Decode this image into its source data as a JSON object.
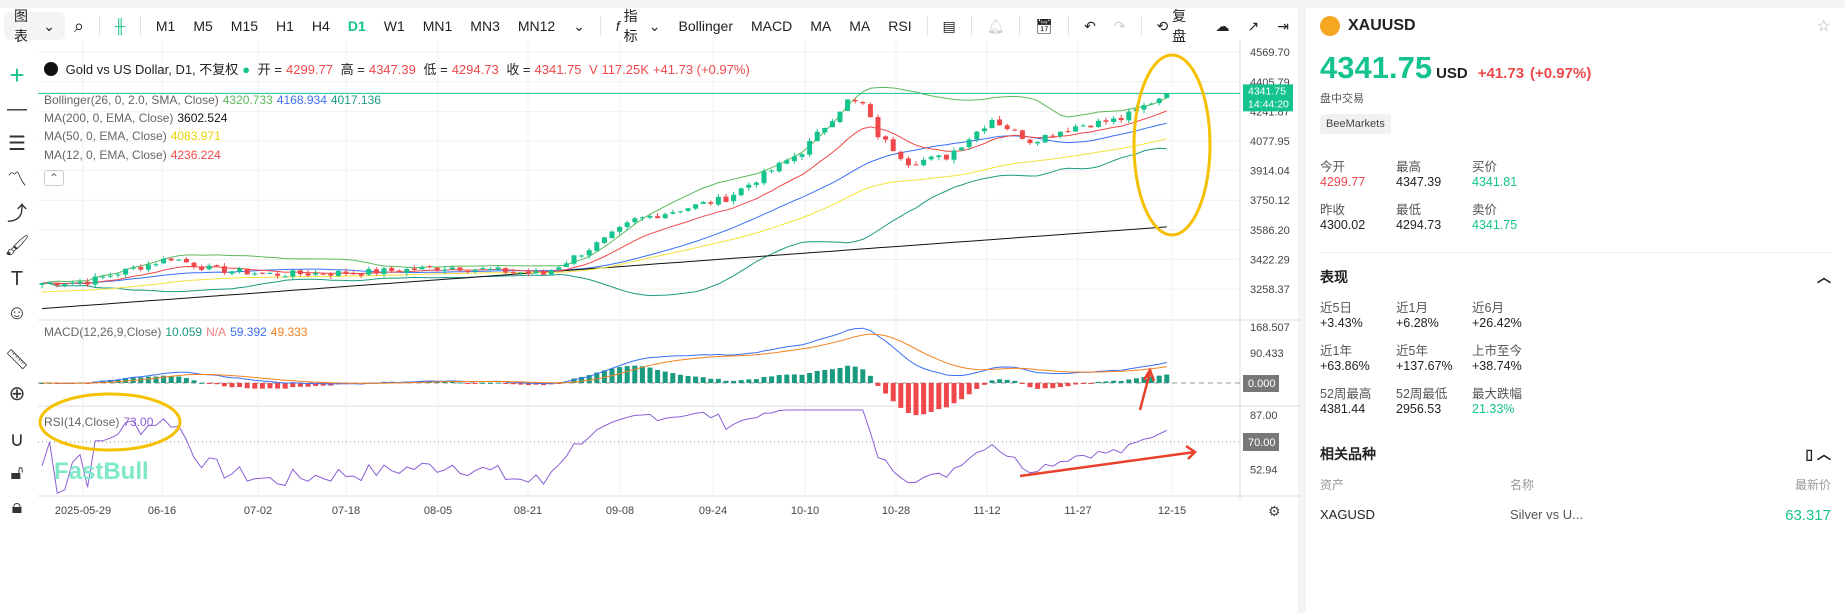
{
  "toolbar": {
    "chart_menu": "图表",
    "timeframes": [
      "M1",
      "M5",
      "M15",
      "H1",
      "H4",
      "D1",
      "W1",
      "MN1",
      "MN3",
      "MN12"
    ],
    "active_timeframe": "D1",
    "indicators_label": "指标",
    "indicator_shortcuts": [
      "Bollinger",
      "MACD",
      "MA",
      "MA",
      "RSI"
    ],
    "replay_label": "复盘"
  },
  "legend": {
    "title": "Gold vs US Dollar, D1, 不复权",
    "open_label": "开 =",
    "open": "4299.77",
    "high_label": "高 =",
    "high": "4347.39",
    "low_label": "低 =",
    "low": "4294.73",
    "close_label": "收 =",
    "close": "4341.75",
    "volume": "V 117.25K",
    "change": "+41.73 (+0.97%)",
    "bollinger": {
      "label": "Bollinger(26, 0, 2.0, SMA, Close)",
      "upper": "4320.733",
      "mid": "4168.934",
      "lower": "4017.136"
    },
    "ma200": {
      "label": "MA(200, 0, EMA, Close)",
      "value": "3602.524"
    },
    "ma50": {
      "label": "MA(50, 0, EMA, Close)",
      "value": "4083.971"
    },
    "ma12": {
      "label": "MA(12, 0, EMA, Close)",
      "value": "4236.224"
    },
    "macd": {
      "label": "MACD(12,26,9,Close)",
      "hist": "10.059",
      "na": "N/A",
      "dif": "59.392",
      "dea": "49.333"
    },
    "rsi": {
      "label": "RSI(14,Close)",
      "value": "73.00"
    }
  },
  "price_axis": [
    "4569.70",
    "4405.79",
    "4241.87",
    "4077.95",
    "3914.04",
    "3750.12",
    "3586.20",
    "3422.29",
    "3258.37"
  ],
  "macd_axis": [
    "168.507",
    "90.433",
    "0.000"
  ],
  "rsi_axis": [
    "87.00",
    "70.00",
    "52.94"
  ],
  "last_price_tag": {
    "price": "4341.75",
    "countdown": "14:44:20"
  },
  "watermark": "FastBull",
  "colors": {
    "up": "#14c38e",
    "down": "#f0484a",
    "bb_upper": "#5cb85c",
    "bb_mid": "#3b6ef5",
    "bb_lower": "#1a9a80",
    "ma200": "#111111",
    "ma50": "#f5e23a",
    "ma12": "#f0484a",
    "rsi": "#8b5fd6",
    "annotation": "#f5c000"
  },
  "chart_data": {
    "type": "candlestick",
    "x_ticks": [
      "2025-05-29",
      "06-16",
      "07-02",
      "07-18",
      "08-05",
      "08-21",
      "09-08",
      "09-24",
      "10-10",
      "10-28",
      "11-12",
      "11-27",
      "12-15"
    ],
    "close_keypoints": [
      [
        "2025-05-20",
        3290
      ],
      [
        "2025-05-29",
        3300
      ],
      [
        "2025-06-13",
        3430
      ],
      [
        "2025-06-20",
        3370
      ],
      [
        "2025-07-02",
        3340
      ],
      [
        "2025-07-18",
        3350
      ],
      [
        "2025-08-05",
        3380
      ],
      [
        "2025-08-21",
        3340
      ],
      [
        "2025-09-02",
        3530
      ],
      [
        "2025-09-08",
        3640
      ],
      [
        "2025-09-24",
        3760
      ],
      [
        "2025-10-08",
        4020
      ],
      [
        "2025-10-16",
        4300
      ],
      [
        "2025-10-20",
        4280
      ],
      [
        "2025-10-22",
        4110
      ],
      [
        "2025-10-28",
        3960
      ],
      [
        "2025-11-04",
        3990
      ],
      [
        "2025-11-12",
        4200
      ],
      [
        "2025-11-19",
        4080
      ],
      [
        "2025-11-27",
        4160
      ],
      [
        "2025-12-05",
        4200
      ],
      [
        "2025-12-15",
        4341.75
      ]
    ],
    "ylim": [
      3180,
      4600
    ]
  },
  "side": {
    "symbol": "XAUUSD",
    "price": "4341.75",
    "currency": "USD",
    "change": "+41.73",
    "change_pct": "(+0.97%)",
    "status": "盘中交易",
    "broker": "BeeMarkets",
    "quote": [
      {
        "label": "今开",
        "value": "4299.77",
        "color": "r"
      },
      {
        "label": "最高",
        "value": "4347.39",
        "color": ""
      },
      {
        "label": "买价",
        "value": "4341.81",
        "color": "g"
      },
      {
        "label": "昨收",
        "value": "4300.02",
        "color": ""
      },
      {
        "label": "最低",
        "value": "4294.73",
        "color": ""
      },
      {
        "label": "卖价",
        "value": "4341.75",
        "color": "g"
      }
    ],
    "performance_title": "表现",
    "performance": [
      {
        "label": "近5日",
        "value": "+3.43%"
      },
      {
        "label": "近1月",
        "value": "+6.28%"
      },
      {
        "label": "近6月",
        "value": "+26.42%"
      },
      {
        "label": "近1年",
        "value": "+63.86%"
      },
      {
        "label": "近5年",
        "value": "+137.67%"
      },
      {
        "label": "上市至今",
        "value": "+38.74%"
      },
      {
        "label": "52周最高",
        "value": "4381.44"
      },
      {
        "label": "52周最低",
        "value": "2956.53"
      },
      {
        "label": "最大跌幅",
        "value": "21.33%",
        "color": "g"
      }
    ],
    "related_title": "相关品种",
    "related_headers": [
      "资产",
      "名称",
      "最新价"
    ],
    "related": [
      {
        "asset": "XAGUSD",
        "name": "Silver vs U...",
        "price": "63.317"
      }
    ]
  }
}
